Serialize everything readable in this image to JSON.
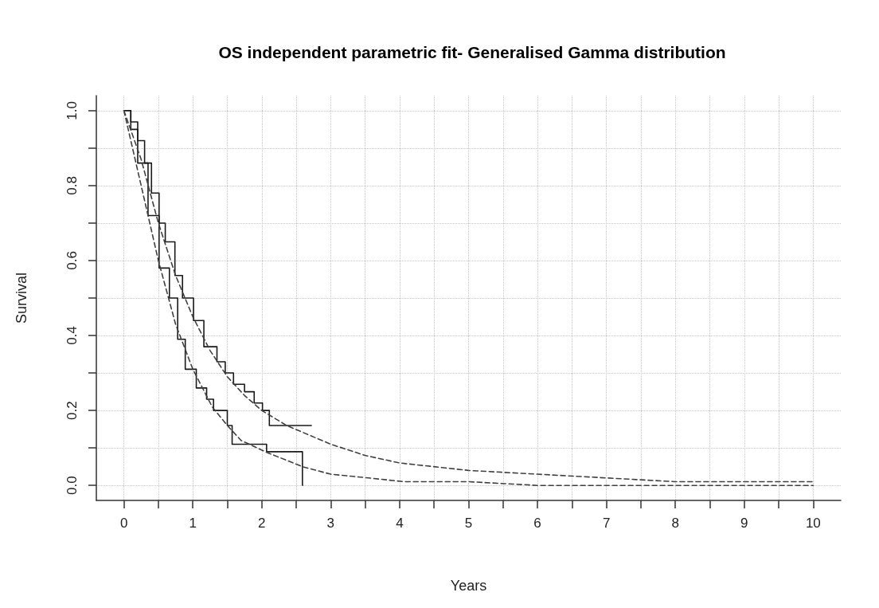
{
  "chart_data": {
    "type": "line",
    "title": "OS independent parametric fit- Generalised Gamma distribution",
    "xlabel": "Years",
    "ylabel": "Survival",
    "xlim": [
      -0.4,
      10.4
    ],
    "ylim": [
      -0.04,
      1.04
    ],
    "xticks": [
      0,
      {
        "value": 0.5,
        "label": null
      },
      1,
      {
        "value": 1.5,
        "label": null
      },
      2,
      {
        "value": 2.5,
        "label": null
      },
      3,
      {
        "value": 3.5,
        "label": null
      },
      4,
      {
        "value": 4.5,
        "label": null
      },
      5,
      {
        "value": 5.5,
        "label": null
      },
      6,
      {
        "value": 6.5,
        "label": null
      },
      7,
      {
        "value": 7.5,
        "label": null
      },
      8,
      {
        "value": 8.5,
        "label": null
      },
      9,
      {
        "value": 9.5,
        "label": null
      },
      10
    ],
    "yticks": [
      {
        "value": 0,
        "label": "0.0"
      },
      {
        "value": 0.1,
        "label": null
      },
      0.2,
      {
        "value": 0.3,
        "label": null
      },
      0.4,
      {
        "value": 0.5,
        "label": null
      },
      0.6,
      {
        "value": 0.7,
        "label": null
      },
      0.8,
      {
        "value": 0.9,
        "label": null
      },
      {
        "value": 1,
        "label": "1.0"
      }
    ],
    "grid": true,
    "marker": "none",
    "series": [
      {
        "type": "step",
        "color": "#1a1a1a",
        "line_style": "solid",
        "x": [
          0,
          0.1,
          0.2,
          0.3,
          0.4,
          0.51,
          0.6,
          0.74,
          0.85,
          1.01,
          1.16,
          1.35,
          1.47,
          1.59,
          1.75,
          1.89,
          2.01,
          2.11,
          2.72
        ],
        "values": [
          1,
          0.97,
          0.92,
          0.86,
          0.78,
          0.7,
          0.65,
          0.56,
          0.5,
          0.44,
          0.37,
          0.33,
          0.3,
          0.27,
          0.25,
          0.22,
          0.2,
          0.16,
          0.16
        ]
      },
      {
        "type": "step",
        "color": "#1a1a1a",
        "line_style": "solid",
        "x": [
          0,
          0.1,
          0.2,
          0.35,
          0.51,
          0.66,
          0.78,
          0.89,
          1.05,
          1.2,
          1.3,
          1.5,
          1.57,
          2.07,
          2.59
        ],
        "values": [
          1,
          0.95,
          0.86,
          0.72,
          0.58,
          0.5,
          0.39,
          0.31,
          0.26,
          0.23,
          0.2,
          0.16,
          0.11,
          0.09,
          0
        ]
      },
      {
        "type": "line",
        "color": "#404040",
        "line_style": "dashed",
        "x": [
          0,
          0.25,
          0.5,
          0.75,
          1,
          1.25,
          1.5,
          1.75,
          2,
          2.36,
          3,
          3.5,
          4,
          5,
          6,
          7,
          8,
          9,
          10
        ],
        "values": [
          1,
          0.87,
          0.7,
          0.56,
          0.45,
          0.36,
          0.29,
          0.24,
          0.2,
          0.16,
          0.11,
          0.08,
          0.06,
          0.04,
          0.03,
          0.02,
          0.01,
          0.01,
          0.01
        ]
      },
      {
        "type": "line",
        "color": "#404040",
        "line_style": "dashed",
        "x": [
          0,
          0.25,
          0.5,
          0.75,
          1,
          1.28,
          1.5,
          1.7,
          2.05,
          2.59,
          3,
          3.55,
          4.06,
          5,
          6,
          8,
          10
        ],
        "values": [
          1,
          0.8,
          0.6,
          0.43,
          0.31,
          0.21,
          0.16,
          0.12,
          0.09,
          0.05,
          0.03,
          0.02,
          0.01,
          0.01,
          0,
          0,
          0
        ]
      }
    ]
  }
}
